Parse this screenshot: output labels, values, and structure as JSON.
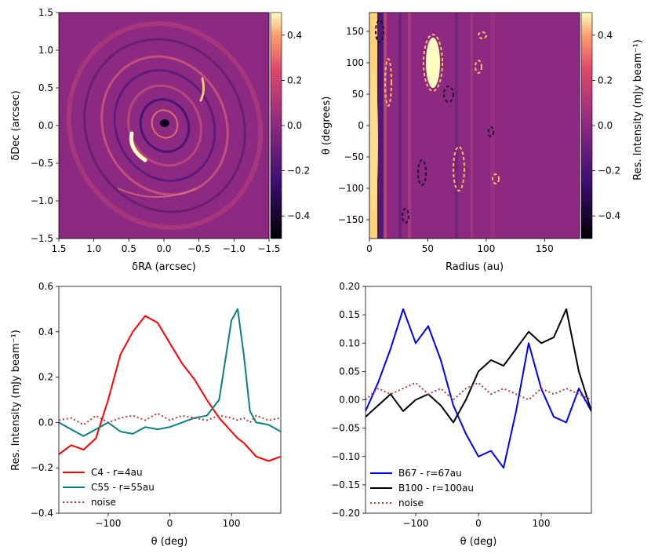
{
  "chart_data": [
    {
      "type": "heatmap",
      "id": "map",
      "xlabel": "δRA (arcsec)",
      "ylabel": "δDec (arcsec)",
      "xlim": [
        1.5,
        -1.5
      ],
      "ylim": [
        -1.5,
        1.5
      ],
      "xticks": [
        "1.5",
        "1.0",
        "0.5",
        "0.0",
        "−0.5",
        "−1.0",
        "−1.5"
      ],
      "yticks": [
        "−1.5",
        "−1.0",
        "−0.5",
        "0.0",
        "0.5",
        "1.0",
        "1.5"
      ],
      "colorbar": {
        "range": [
          -0.5,
          0.5
        ],
        "ticks": [
          "0.4",
          "0.2",
          "0.0",
          "−0.2",
          "−0.4"
        ]
      }
    },
    {
      "type": "heatmap",
      "id": "polar",
      "xlabel": "Radius (au)",
      "ylabel": "θ (degrees)",
      "xlim": [
        0,
        180
      ],
      "ylim": [
        -180,
        180
      ],
      "xticks": [
        "0",
        "50",
        "100",
        "150"
      ],
      "yticks": [
        "150",
        "100",
        "50",
        "0",
        "−50",
        "−100",
        "−150"
      ],
      "colorbar": {
        "range": [
          -0.5,
          0.5
        ],
        "ticks": [
          "0.4",
          "0.2",
          "0.0",
          "−0.2",
          "−0.4"
        ],
        "label": "Res. Intensity (mJy beam⁻¹)"
      }
    },
    {
      "type": "line",
      "id": "profiles_c",
      "xlabel": "θ (deg)",
      "ylabel": "Res. Intensity (mJy beam⁻¹)",
      "xlim": [
        -180,
        180
      ],
      "ylim": [
        -0.4,
        0.6
      ],
      "xticks": [
        "−100",
        "0",
        "100"
      ],
      "yticks": [
        "0.6",
        "0.4",
        "0.2",
        "0.0",
        "−0.2",
        "−0.4"
      ],
      "x": [
        -180,
        -160,
        -140,
        -120,
        -100,
        -80,
        -60,
        -40,
        -20,
        0,
        20,
        40,
        60,
        80,
        100,
        110,
        120,
        130,
        140,
        160,
        180
      ],
      "series": [
        {
          "name": "C4 - r=4au",
          "color": "#ff0000",
          "style": "solid",
          "values": [
            -0.14,
            -0.1,
            -0.12,
            -0.07,
            0.1,
            0.3,
            0.4,
            0.47,
            0.44,
            0.35,
            0.26,
            0.19,
            0.1,
            0.02,
            -0.04,
            -0.07,
            -0.09,
            -0.12,
            -0.15,
            -0.17,
            -0.15
          ]
        },
        {
          "name": "C55 - r=55au",
          "color": "#0a7f7f",
          "style": "solid",
          "values": [
            0.0,
            -0.03,
            -0.06,
            -0.03,
            0.0,
            -0.04,
            -0.05,
            -0.02,
            -0.03,
            -0.02,
            0.0,
            0.02,
            0.03,
            0.1,
            0.45,
            0.5,
            0.3,
            0.05,
            0.0,
            -0.01,
            -0.04
          ]
        },
        {
          "name": "noise",
          "color": "#b03a3a",
          "style": "dotted",
          "values": [
            0.01,
            0.02,
            -0.01,
            0.03,
            0.0,
            0.02,
            0.03,
            0.01,
            0.04,
            0.01,
            0.03,
            0.02,
            0.01,
            0.03,
            0.02,
            0.01,
            0.02,
            0.0,
            0.03,
            0.01,
            0.02
          ]
        }
      ]
    },
    {
      "type": "line",
      "id": "profiles_b",
      "xlabel": "θ (deg)",
      "ylabel": "",
      "xlim": [
        -180,
        180
      ],
      "ylim": [
        -0.2,
        0.2
      ],
      "xticks": [
        "−100",
        "0",
        "100"
      ],
      "yticks": [
        "0.20",
        "0.15",
        "0.10",
        "0.05",
        "0.00",
        "−0.05",
        "−0.10",
        "−0.15",
        "−0.20"
      ],
      "x": [
        -180,
        -160,
        -140,
        -120,
        -100,
        -80,
        -60,
        -40,
        -20,
        0,
        20,
        40,
        60,
        80,
        100,
        120,
        140,
        160,
        180
      ],
      "series": [
        {
          "name": "B67 - r=67au",
          "color": "#0000ee",
          "style": "solid",
          "values": [
            -0.02,
            0.03,
            0.09,
            0.16,
            0.1,
            0.13,
            0.07,
            -0.01,
            -0.06,
            -0.1,
            -0.09,
            -0.12,
            -0.02,
            0.1,
            0.02,
            -0.03,
            -0.04,
            0.02,
            -0.02
          ]
        },
        {
          "name": "B100 - r=100au",
          "color": "#000000",
          "style": "solid",
          "values": [
            -0.03,
            -0.01,
            0.01,
            -0.02,
            0.0,
            0.01,
            -0.01,
            -0.04,
            0.0,
            0.05,
            0.07,
            0.06,
            0.09,
            0.12,
            0.1,
            0.11,
            0.16,
            0.05,
            -0.02
          ]
        },
        {
          "name": "noise",
          "color": "#b03a3a",
          "style": "dotted",
          "values": [
            0.0,
            0.02,
            0.01,
            0.02,
            0.03,
            0.01,
            0.02,
            0.0,
            0.02,
            0.03,
            0.01,
            0.02,
            0.01,
            0.0,
            0.02,
            0.01,
            0.02,
            0.01,
            0.0
          ]
        }
      ]
    }
  ]
}
